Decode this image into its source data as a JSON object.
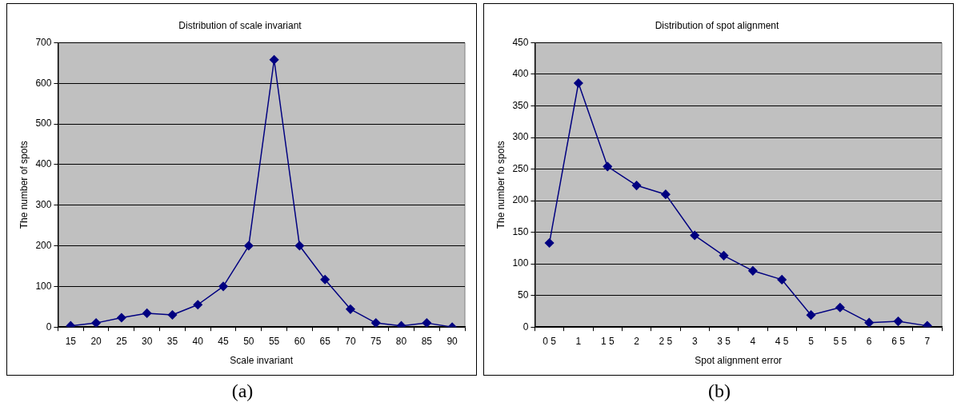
{
  "chart_data": [
    {
      "type": "line",
      "title": "Distribution of scale invariant",
      "xlabel": "Scale invariant",
      "ylabel": "The number of spots",
      "categories": [
        "15",
        "20",
        "25",
        "30",
        "35",
        "40",
        "45",
        "50",
        "55",
        "60",
        "65",
        "70",
        "75",
        "80",
        "85",
        "90"
      ],
      "series": [
        {
          "color": "#000080",
          "values": [
            3,
            10,
            23,
            34,
            30,
            55,
            100,
            200,
            658,
            200,
            117,
            44,
            10,
            3,
            10,
            0
          ]
        }
      ],
      "ylim": [
        0,
        700
      ],
      "yticks": [
        0,
        100,
        200,
        300,
        400,
        500,
        600,
        700
      ],
      "grid": "y",
      "legend": false,
      "marker": "diamond",
      "line_style": "solid",
      "annotations": [
        "(a)"
      ]
    },
    {
      "type": "line",
      "title": "Distribution of spot alignment",
      "xlabel": "Spot alignment error",
      "ylabel": "The number fo spots",
      "categories": [
        "0 5",
        "1",
        "1 5",
        "2",
        "2 5",
        "3",
        "3 5",
        "4",
        "4 5",
        "5",
        "5 5",
        "6",
        "6 5",
        "7"
      ],
      "series": [
        {
          "color": "#000080",
          "values": [
            133,
            386,
            254,
            224,
            210,
            145,
            113,
            89,
            75,
            19,
            31,
            7,
            9,
            2
          ]
        }
      ],
      "ylim": [
        0,
        450
      ],
      "yticks": [
        0,
        50,
        100,
        150,
        200,
        250,
        300,
        350,
        400,
        450
      ],
      "grid": "y",
      "legend": false,
      "marker": "diamond",
      "line_style": "solid",
      "annotations": [
        "(b)"
      ]
    }
  ]
}
